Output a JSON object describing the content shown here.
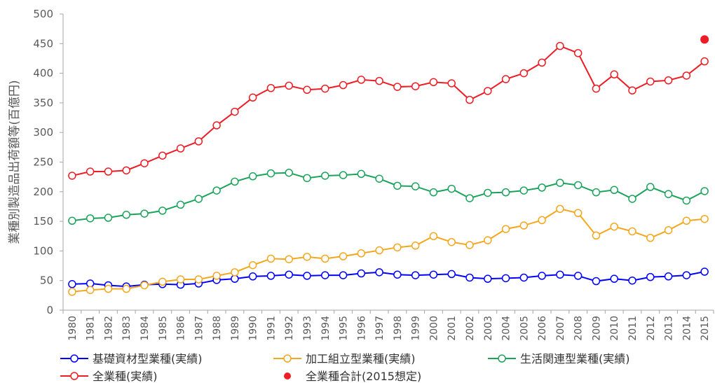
{
  "chart_data": {
    "type": "line",
    "ylabel": "業種別製造品出荷額等(百億円)",
    "ylim": [
      0,
      500
    ],
    "yticks": [
      0,
      50,
      100,
      150,
      200,
      250,
      300,
      350,
      400,
      450,
      500
    ],
    "x": [
      "1980",
      "1981",
      "1982",
      "1983",
      "1984",
      "1985",
      "1986",
      "1987",
      "1988",
      "1989",
      "1990",
      "1991",
      "1992",
      "1993",
      "1994",
      "1995",
      "1996",
      "1997",
      "1998",
      "1999",
      "2000",
      "2001",
      "2002",
      "2003",
      "2004",
      "2005",
      "2006",
      "2007",
      "2008",
      "2009",
      "2010",
      "2011",
      "2012",
      "2013",
      "2014",
      "2015"
    ],
    "grid": "none",
    "legend_position": "bottom",
    "series": [
      {
        "name": "基礎資材型業種(実績)",
        "color": "#0000ff",
        "marker": "open-circle",
        "values": [
          44,
          45,
          42,
          40,
          43,
          44,
          43,
          45,
          51,
          53,
          57,
          58,
          60,
          58,
          59,
          59,
          62,
          64,
          60,
          59,
          60,
          61,
          55,
          53,
          54,
          55,
          58,
          60,
          58,
          49,
          53,
          50,
          56,
          57,
          59,
          65
        ]
      },
      {
        "name": "加工組立型業種(実績)",
        "color": "#f4a71c",
        "marker": "open-circle",
        "values": [
          31,
          34,
          36,
          36,
          42,
          48,
          52,
          52,
          58,
          64,
          76,
          87,
          86,
          90,
          87,
          91,
          96,
          101,
          106,
          109,
          125,
          115,
          110,
          118,
          137,
          143,
          152,
          171,
          164,
          126,
          141,
          133,
          122,
          135,
          151,
          154
        ]
      },
      {
        "name": "生活関連型業種(実績)",
        "color": "#1aa35a",
        "marker": "open-circle",
        "values": [
          151,
          155,
          156,
          161,
          163,
          168,
          178,
          188,
          202,
          217,
          226,
          231,
          232,
          223,
          227,
          228,
          230,
          222,
          210,
          209,
          199,
          205,
          189,
          198,
          199,
          202,
          207,
          215,
          211,
          199,
          203,
          188,
          208,
          196,
          185,
          201
        ]
      },
      {
        "name": "全業種(実績)",
        "color": "#ee1c24",
        "marker": "open-circle",
        "values": [
          227,
          234,
          234,
          236,
          248,
          261,
          273,
          285,
          312,
          335,
          359,
          375,
          379,
          372,
          374,
          380,
          389,
          387,
          377,
          378,
          385,
          383,
          355,
          370,
          390,
          400,
          418,
          446,
          434,
          374,
          398,
          371,
          386,
          388,
          396,
          420
        ]
      },
      {
        "name": "全業種合計(2015想定)",
        "color": "#ee1c24",
        "marker": "filled-circle",
        "points": [
          {
            "x": "2015",
            "y": 457
          }
        ]
      }
    ]
  }
}
